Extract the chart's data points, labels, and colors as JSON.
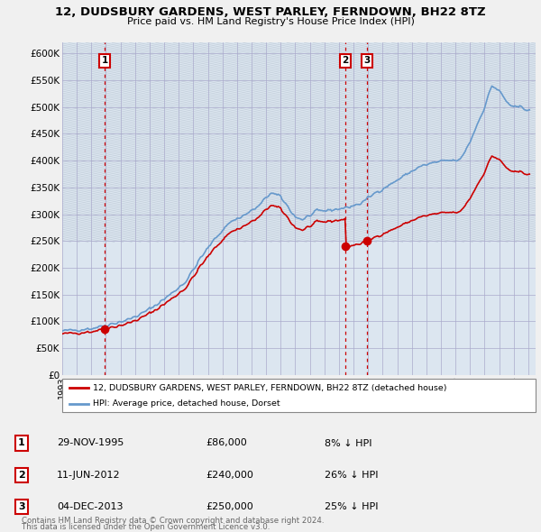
{
  "title": "12, DUDSBURY GARDENS, WEST PARLEY, FERNDOWN, BH22 8TZ",
  "subtitle": "Price paid vs. HM Land Registry's House Price Index (HPI)",
  "legend_label_red": "12, DUDSBURY GARDENS, WEST PARLEY, FERNDOWN, BH22 8TZ (detached house)",
  "legend_label_blue": "HPI: Average price, detached house, Dorset",
  "footer_line1": "Contains HM Land Registry data © Crown copyright and database right 2024.",
  "footer_line2": "This data is licensed under the Open Government Licence v3.0.",
  "transactions": [
    {
      "num": 1,
      "date": "29-NOV-1995",
      "price": 86000,
      "x": 1995.91
    },
    {
      "num": 2,
      "date": "11-JUN-2012",
      "price": 240000,
      "x": 2012.44
    },
    {
      "num": 3,
      "date": "04-DEC-2013",
      "price": 250000,
      "x": 2013.92
    }
  ],
  "table_rows": [
    {
      "num": 1,
      "date": "29-NOV-1995",
      "price": "£86,000",
      "info": "8% ↓ HPI"
    },
    {
      "num": 2,
      "date": "11-JUN-2012",
      "price": "£240,000",
      "info": "26% ↓ HPI"
    },
    {
      "num": 3,
      "date": "04-DEC-2013",
      "price": "£250,000",
      "info": "25% ↓ HPI"
    }
  ],
  "ylim": [
    0,
    620000
  ],
  "xlim_start": 1993.0,
  "xlim_end": 2025.5,
  "red_color": "#cc0000",
  "blue_color": "#6699cc",
  "grid_color": "#aaaacc",
  "bg_plot": "#dce6f0",
  "hatch_color": "#c0ccd8"
}
